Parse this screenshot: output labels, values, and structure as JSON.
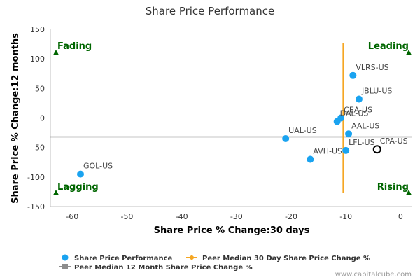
{
  "chart_data": {
    "type": "scatter",
    "title": "Share Price Performance",
    "xlabel": "Share Price % Change:30 days",
    "ylabel": "Share Price % Change:12 months",
    "xlim": [
      -64,
      2
    ],
    "ylim": [
      -150,
      150
    ],
    "x_ticks": [
      -60,
      -50,
      -40,
      -30,
      -20,
      -10,
      0
    ],
    "y_ticks": [
      -150,
      -100,
      -50,
      0,
      50,
      100,
      150
    ],
    "grid": false,
    "legend_position": "bottom",
    "series": [
      {
        "name": "Share Price Performance",
        "color": "#1aa3f0",
        "points": [
          {
            "label": "VLRS-US",
            "x": -8.7,
            "y": 72
          },
          {
            "label": "JBLU-US",
            "x": -7.6,
            "y": 32
          },
          {
            "label": "CEA-US",
            "x": -10.9,
            "y": 0
          },
          {
            "label": "DAL-US",
            "x": -11.6,
            "y": -6
          },
          {
            "label": "AAL-US",
            "x": -9.5,
            "y": -27
          },
          {
            "label": "UAL-US",
            "x": -21.0,
            "y": -35
          },
          {
            "label": "LFL-US",
            "x": -10.0,
            "y": -55
          },
          {
            "label": "AVH-US",
            "x": -16.5,
            "y": -70
          },
          {
            "label": "GOL-US",
            "x": -58.5,
            "y": -95
          }
        ]
      }
    ],
    "highlight": {
      "label": "CPA-US",
      "x": -4.3,
      "y": -53
    },
    "peer_median_30d": {
      "name": "Peer Median 30 Day Share Price Change %",
      "x": -10.5,
      "color": "#f5a623"
    },
    "peer_median_12m": {
      "name": "Peer Median 12 Month Share Price Change %",
      "y": -32,
      "color": "#8c8c8c"
    },
    "quadrant_labels": {
      "top_left": "Fading",
      "top_right": "Leading",
      "bottom_left": "Lagging",
      "bottom_right": "Rising"
    },
    "quadrant_color": "#006600"
  },
  "credit": "www.capitalcube.com"
}
